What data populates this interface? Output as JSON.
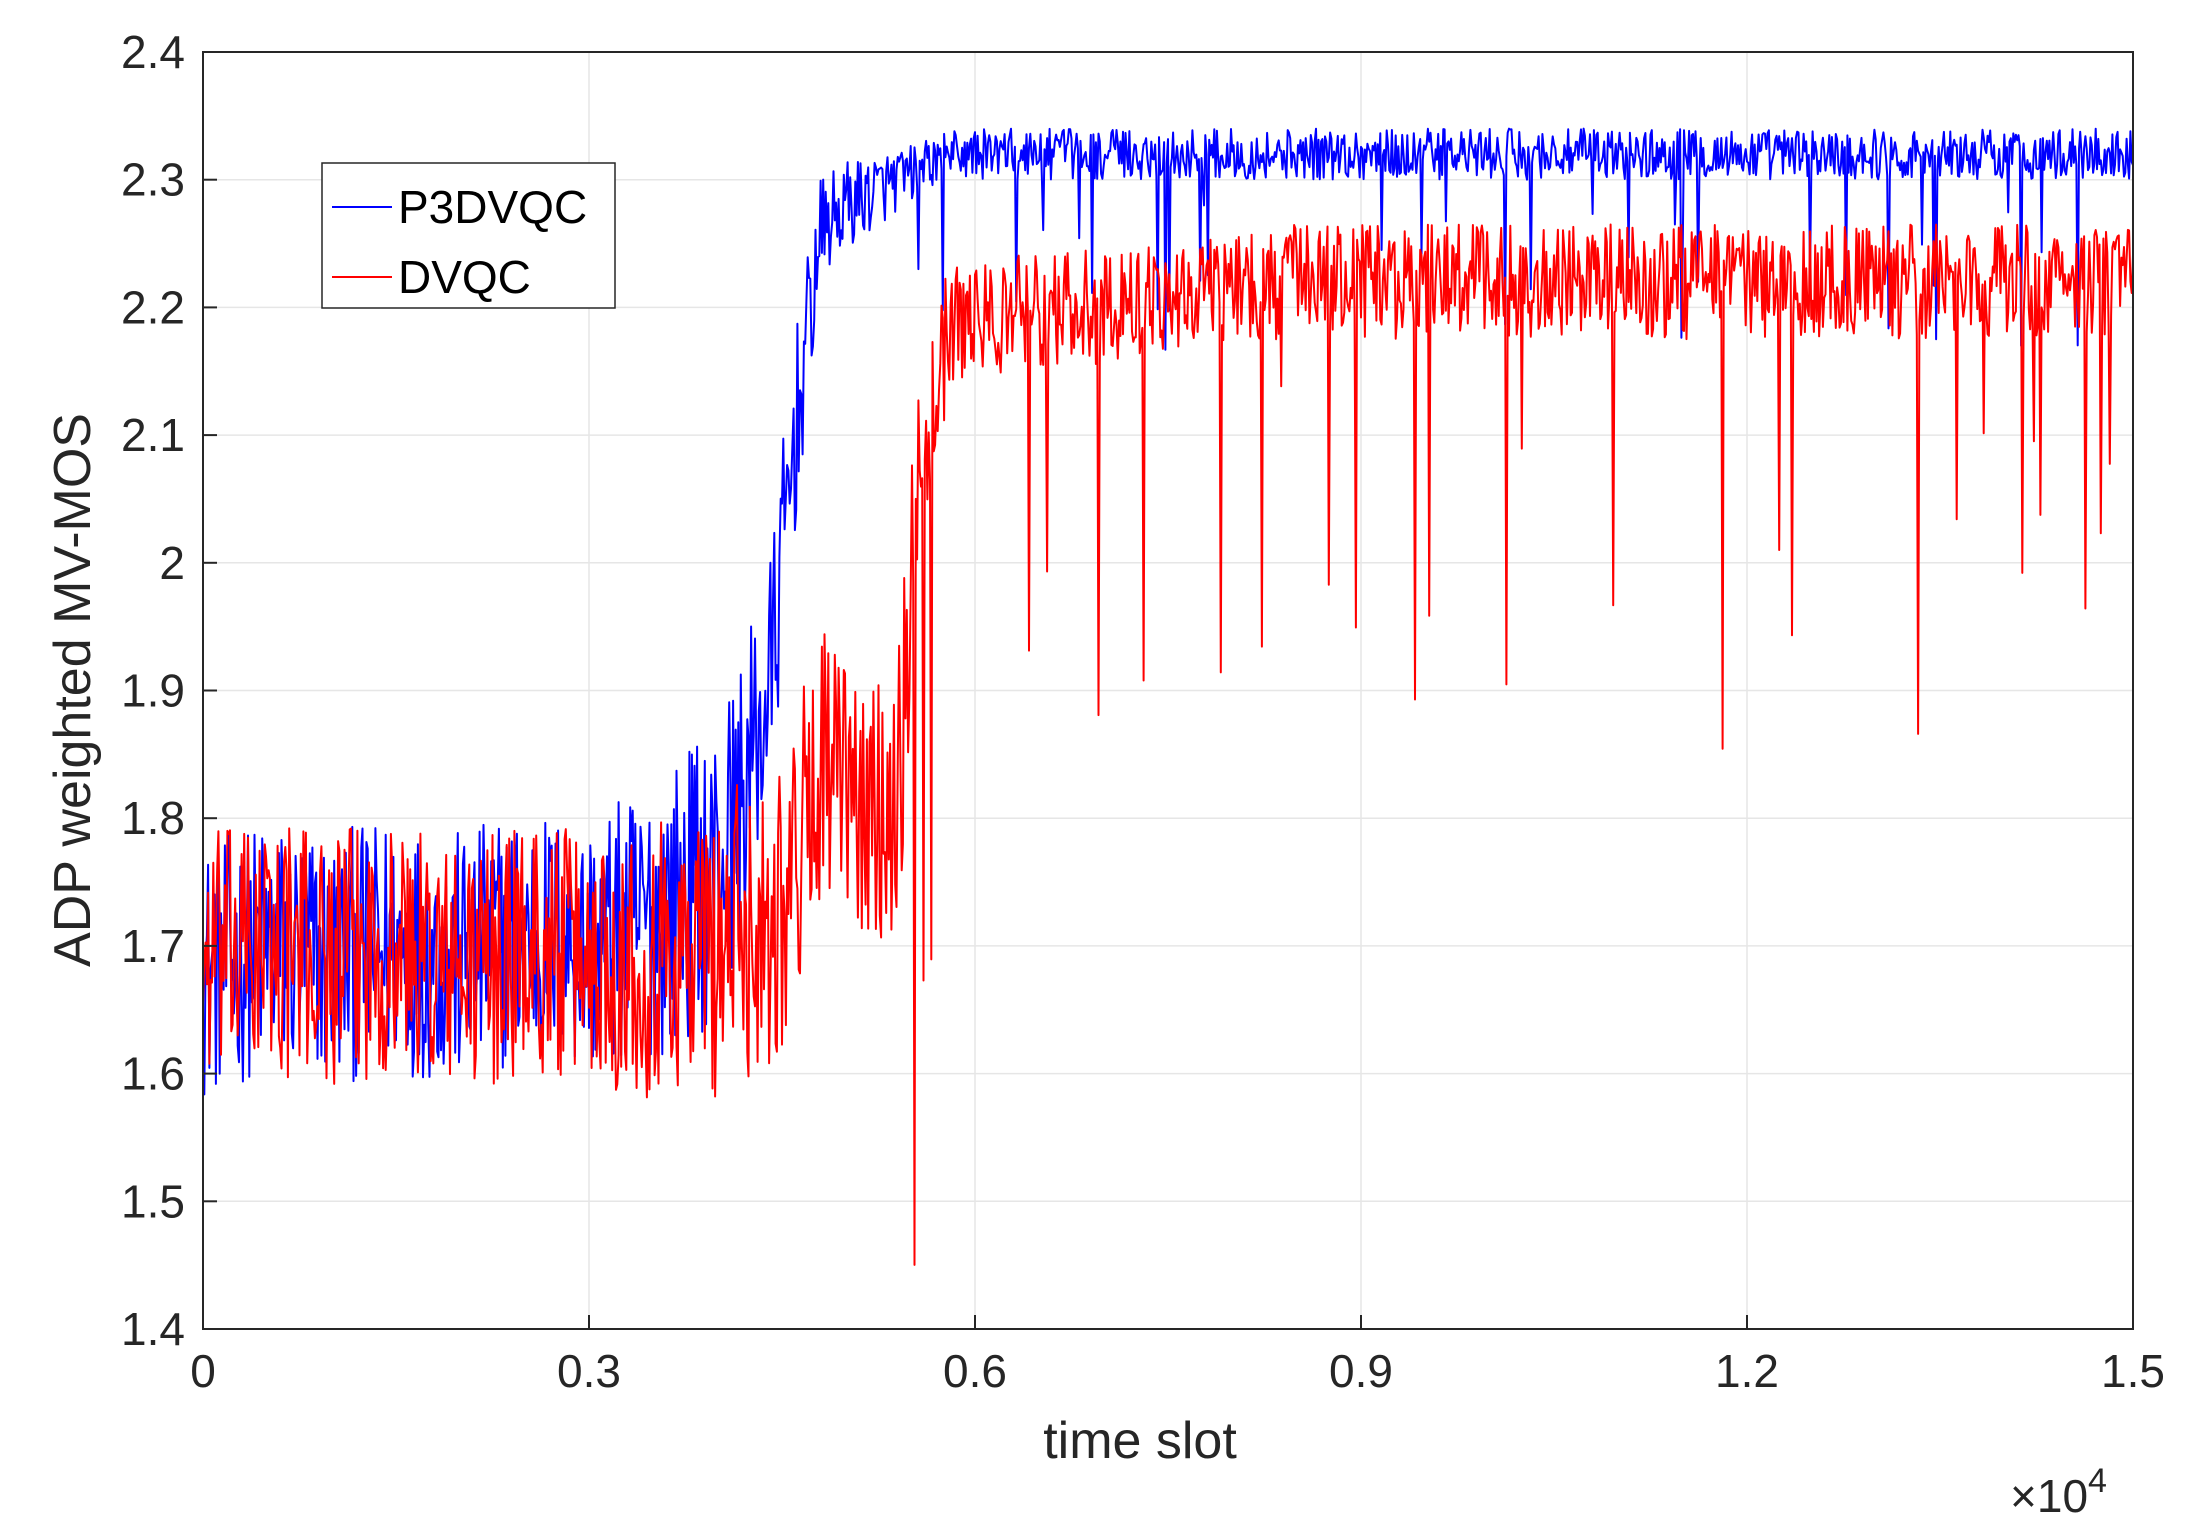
{
  "chart_data": {
    "type": "line",
    "title": "",
    "xlabel": "time slot",
    "ylabel": "ADP weighted MV-MOS",
    "x_exponent_label": "×10",
    "x_exponent_power": "4",
    "xlim": [
      0,
      1.5
    ],
    "ylim": [
      1.4,
      2.4
    ],
    "x_ticks": [
      0,
      0.3,
      0.6,
      0.9,
      1.2,
      1.5
    ],
    "x_tick_labels": [
      "0",
      "0.3",
      "0.6",
      "0.9",
      "1.2",
      "1.5"
    ],
    "y_ticks": [
      1.4,
      1.5,
      1.6,
      1.7,
      1.8,
      1.9,
      2.0,
      2.1,
      2.2,
      2.3,
      2.4
    ],
    "y_tick_labels": [
      "1.4",
      "1.5",
      "1.6",
      "1.7",
      "1.8",
      "1.9",
      "2",
      "2.1",
      "2.2",
      "2.3",
      "2.4"
    ],
    "grid": true,
    "legend_position": "top-left",
    "series": [
      {
        "name": "P3DVQC",
        "color": "#0000ff",
        "x": [
          0,
          0.05,
          0.1,
          0.15,
          0.2,
          0.25,
          0.3,
          0.35,
          0.4,
          0.42,
          0.44,
          0.46,
          0.48,
          0.5,
          0.52,
          0.54,
          0.56,
          0.58,
          0.6,
          0.65,
          0.7,
          0.75,
          0.8,
          0.85,
          0.9,
          0.95,
          1.0,
          1.05,
          1.1,
          1.15,
          1.2,
          1.25,
          1.3,
          1.35,
          1.4,
          1.45,
          1.5
        ],
        "y": [
          1.68,
          1.7,
          1.69,
          1.7,
          1.69,
          1.71,
          1.7,
          1.72,
          1.76,
          1.82,
          1.9,
          2.1,
          2.26,
          2.28,
          2.29,
          2.3,
          2.31,
          2.32,
          2.32,
          2.32,
          2.32,
          2.32,
          2.32,
          2.32,
          2.32,
          2.32,
          2.32,
          2.32,
          2.32,
          2.32,
          2.32,
          2.32,
          2.32,
          2.32,
          2.32,
          2.32,
          2.32
        ],
        "noise": [
          0.1,
          0.1,
          0.1,
          0.1,
          0.1,
          0.1,
          0.1,
          0.11,
          0.12,
          0.11,
          0.1,
          0.08,
          0.04,
          0.035,
          0.03,
          0.025,
          0.02,
          0.02,
          0.02,
          0.02,
          0.02,
          0.02,
          0.02,
          0.02,
          0.02,
          0.02,
          0.02,
          0.02,
          0.02,
          0.02,
          0.02,
          0.02,
          0.02,
          0.02,
          0.02,
          0.02,
          0.02
        ]
      },
      {
        "name": "DVQC",
        "color": "#ff0000",
        "x": [
          0,
          0.05,
          0.1,
          0.15,
          0.2,
          0.25,
          0.3,
          0.35,
          0.4,
          0.44,
          0.46,
          0.48,
          0.5,
          0.52,
          0.54,
          0.56,
          0.58,
          0.6,
          0.65,
          0.7,
          0.75,
          0.8,
          0.85,
          0.9,
          0.95,
          1.0,
          1.05,
          1.1,
          1.15,
          1.2,
          1.25,
          1.3,
          1.35,
          1.4,
          1.45,
          1.5
        ],
        "y": [
          1.69,
          1.7,
          1.69,
          1.7,
          1.68,
          1.7,
          1.69,
          1.69,
          1.7,
          1.72,
          1.76,
          1.85,
          1.82,
          1.8,
          1.83,
          2.1,
          2.18,
          2.19,
          2.2,
          2.2,
          2.21,
          2.22,
          2.22,
          2.22,
          2.22,
          2.22,
          2.22,
          2.22,
          2.22,
          2.22,
          2.22,
          2.22,
          2.22,
          2.22,
          2.22,
          2.22
        ],
        "noise": [
          0.1,
          0.1,
          0.1,
          0.1,
          0.1,
          0.1,
          0.1,
          0.11,
          0.12,
          0.12,
          0.12,
          0.11,
          0.1,
          0.1,
          0.12,
          0.08,
          0.05,
          0.045,
          0.045,
          0.045,
          0.045,
          0.045,
          0.045,
          0.045,
          0.045,
          0.045,
          0.045,
          0.045,
          0.045,
          0.045,
          0.045,
          0.045,
          0.045,
          0.045,
          0.045,
          0.045
        ]
      }
    ]
  }
}
